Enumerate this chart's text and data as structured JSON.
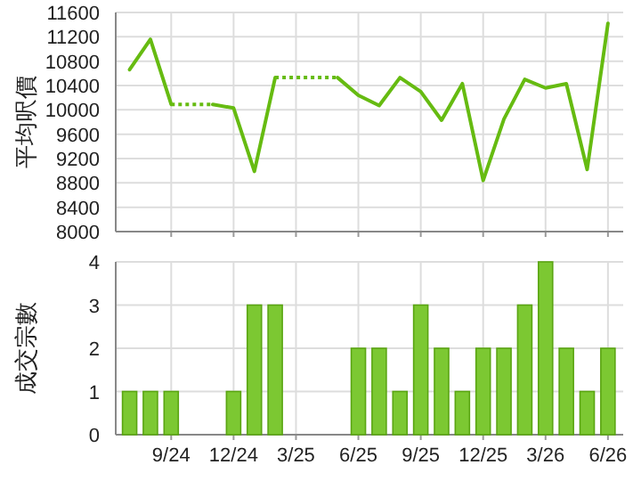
{
  "chart_data": [
    {
      "type": "line",
      "ylabel": "平均呎價",
      "tick_labels": "y",
      "grid": true,
      "marker": "none",
      "line_style": "solid",
      "x": [
        "2024-07",
        "2024-08",
        "2024-09",
        "2024-10",
        "2024-11",
        "2024-12",
        "2025-01",
        "2025-02",
        "2025-03",
        "2025-04",
        "2025-05",
        "2025-06",
        "2025-07",
        "2025-08",
        "2025-09",
        "2025-10",
        "2025-11",
        "2025-12",
        "2026-01",
        "2026-02",
        "2026-03",
        "2026-04",
        "2026-05",
        "2026-06"
      ],
      "series": [
        {
          "color": "#66bb11",
          "values": [
            10660,
            11160,
            10090,
            null,
            10090,
            10030,
            8990,
            10530,
            null,
            null,
            10530,
            10240,
            10070,
            10530,
            10300,
            9830,
            10430,
            8840,
            9850,
            10500,
            10360,
            10430,
            9020,
            11420
          ]
        }
      ],
      "xlim": [
        "2024-06-11",
        "2026-06-23"
      ],
      "xticks": [
        {
          "value": "2024-09",
          "label": null
        },
        {
          "value": "2024-12",
          "label": null
        },
        {
          "value": "2025-03",
          "label": null
        },
        {
          "value": "2025-06",
          "label": null
        },
        {
          "value": "2025-09",
          "label": null
        },
        {
          "value": "2025-12",
          "label": null
        },
        {
          "value": "2026-03",
          "label": null
        },
        {
          "value": "2026-06",
          "label": null
        }
      ],
      "ylim": [
        8000,
        11600
      ],
      "yticks": [
        8000,
        8400,
        8800,
        9200,
        9600,
        10000,
        10400,
        10800,
        11200,
        11600
      ]
    },
    {
      "type": "bar",
      "ylabel": "成交宗數",
      "grid": true,
      "x": [
        "2024-07",
        "2024-08",
        "2024-09",
        "2024-10",
        "2024-11",
        "2024-12",
        "2025-01",
        "2025-02",
        "2025-03",
        "2025-04",
        "2025-05",
        "2025-06",
        "2025-07",
        "2025-08",
        "2025-09",
        "2025-10",
        "2025-11",
        "2025-12",
        "2026-01",
        "2026-02",
        "2026-03",
        "2026-04",
        "2026-05",
        "2026-06"
      ],
      "series": [
        {
          "color": "#7cc832",
          "values": [
            1,
            1,
            1,
            0,
            0,
            1,
            3,
            3,
            0,
            0,
            0,
            2,
            2,
            1,
            3,
            2,
            1,
            2,
            2,
            3,
            4,
            2,
            1,
            2
          ]
        }
      ],
      "xlim": [
        "2024-06-11",
        "2026-06-23"
      ],
      "xticks": [
        {
          "value": "2024-09",
          "label": "9/24"
        },
        {
          "value": "2024-12",
          "label": "12/24"
        },
        {
          "value": "2025-03",
          "label": "3/25"
        },
        {
          "value": "2025-06",
          "label": "6/25"
        },
        {
          "value": "2025-09",
          "label": "9/25"
        },
        {
          "value": "2025-12",
          "label": "12/25"
        },
        {
          "value": "2026-03",
          "label": "3/26"
        },
        {
          "value": "2026-06",
          "label": "6/26"
        }
      ],
      "ylim": [
        0,
        4
      ],
      "yticks": [
        0,
        1,
        2,
        3,
        4
      ]
    }
  ]
}
